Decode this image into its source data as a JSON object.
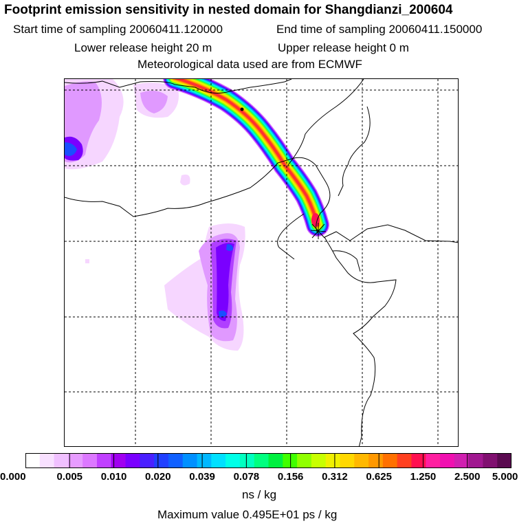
{
  "header": {
    "title": "Footprint emission sensitivity in nested domain for Shangdianzi_200604",
    "start_time": "Start time of sampling 20060411.120000",
    "end_time": "End time of sampling 20060411.150000",
    "lower_release": "Lower release height   20 m",
    "upper_release": "Upper release height    0 m",
    "meteo": "Meteorological data used are from ECMWF"
  },
  "map": {
    "plume_colors": [
      "#cc66ff",
      "#7700ff",
      "#2040ff",
      "#00b0ff",
      "#00ffe0",
      "#00ff80",
      "#80ff00",
      "#d8ff00",
      "#ffd000",
      "#ff9000",
      "#ff3030"
    ],
    "patch_colors": {
      "light": "#f6d6ff",
      "mid": "#e099ff",
      "strong": "#b040ff",
      "deep": "#7a00ff",
      "core": "#1a4fff"
    },
    "release_marker": "station-star"
  },
  "legend": {
    "colors": [
      "#ffffff",
      "#f8e0ff",
      "#f0c0ff",
      "#e79cff",
      "#dc78ff",
      "#c040ff",
      "#a000f0",
      "#7a00ff",
      "#4a20ff",
      "#2040ff",
      "#1060ff",
      "#0090ff",
      "#00b8ff",
      "#00e0ff",
      "#00ffe8",
      "#00ffc0",
      "#00ff80",
      "#00f040",
      "#40ff00",
      "#90ff00",
      "#c8ff00",
      "#f0f000",
      "#ffd800",
      "#ffb800",
      "#ff9800",
      "#ff7000",
      "#ff4020",
      "#ff1050",
      "#ff20a0",
      "#f010b0",
      "#d020b0",
      "#a01890",
      "#801070",
      "#5a0a50"
    ],
    "ticks": [
      "0.000",
      "0.005",
      "0.010",
      "0.020",
      "0.039",
      "0.078",
      "0.156",
      "0.312",
      "0.625",
      "1.250",
      "2.500",
      "5.000"
    ],
    "unit": "ns / kg",
    "max_value": "Maximum value  0.495E+01 ps / kg"
  }
}
